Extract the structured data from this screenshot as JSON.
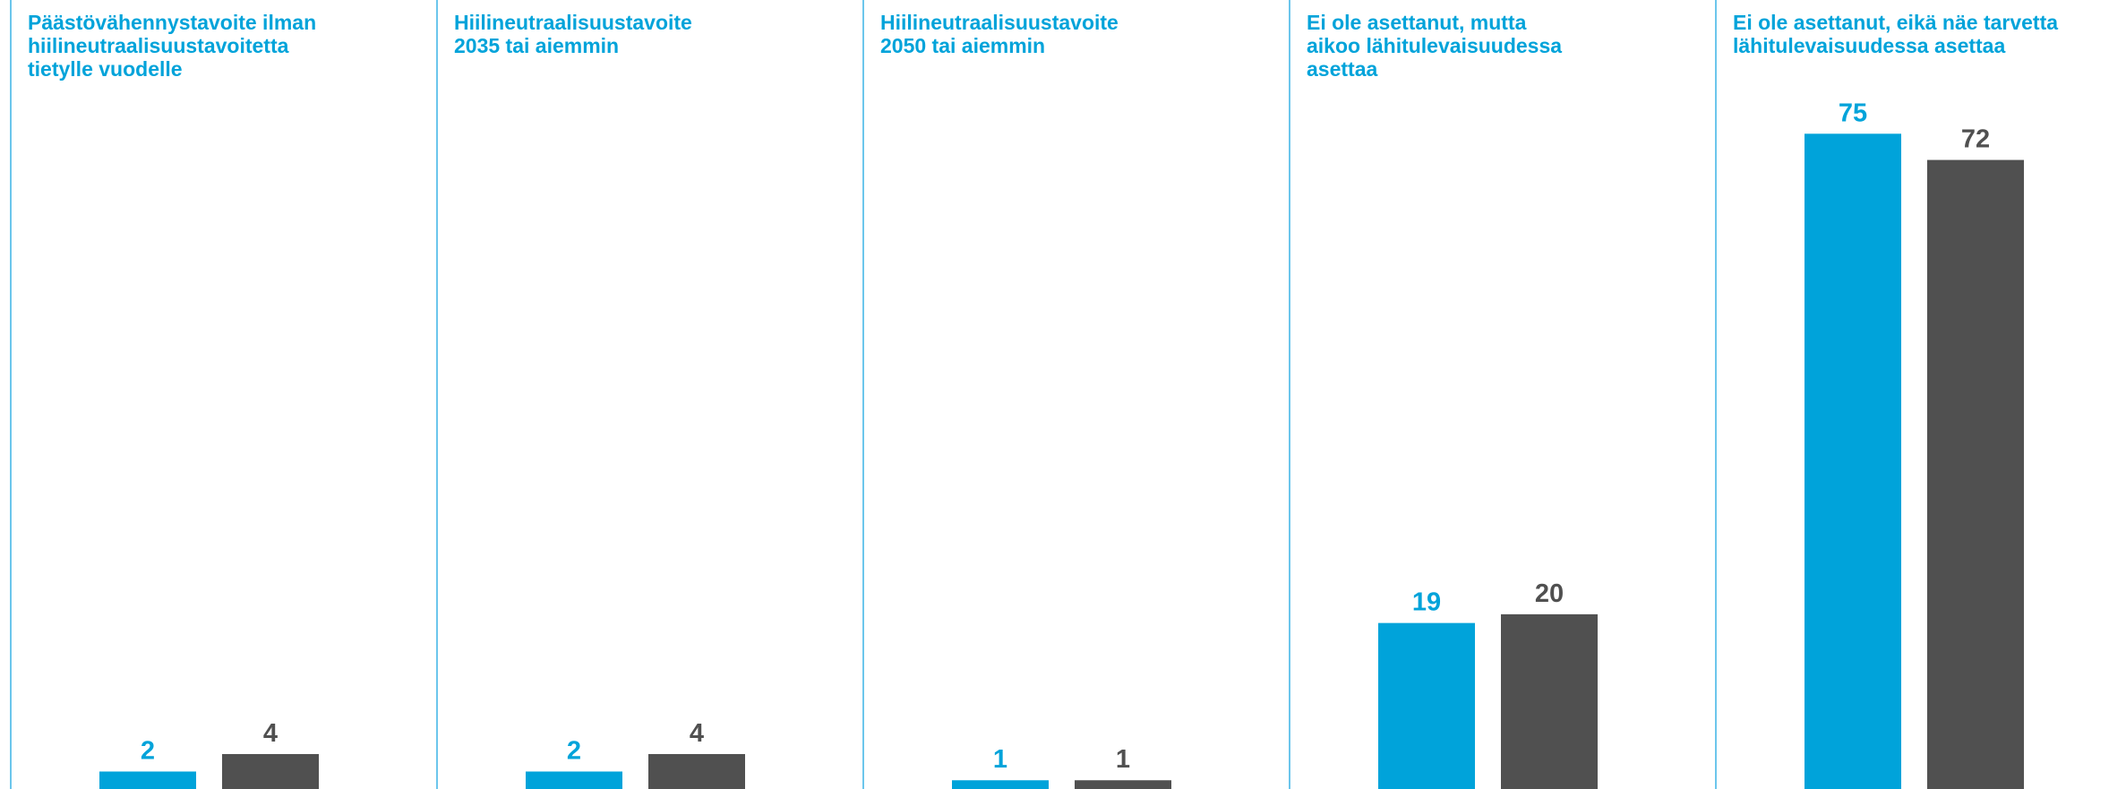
{
  "chart_data": {
    "type": "bar",
    "categories": [
      [
        "Päästövähennystavoite ilman",
        "hiilineutraalisuustavoitetta",
        "tietylle vuodelle"
      ],
      [
        "Hiilineutraalisuustavoite",
        "2035 tai aiemmin"
      ],
      [
        "Hiilineutraalisuustavoite",
        "2050 tai aiemmin"
      ],
      [
        "Ei ole asettanut, mutta",
        "aikoo lähitulevaisuudessa",
        "asettaa"
      ],
      [
        "Ei ole asettanut, eikä näe tarvetta",
        "lähitulevaisuudessa asettaa"
      ]
    ],
    "series": [
      {
        "color": "#00a3da",
        "values": [
          2,
          2,
          1,
          19,
          75
        ]
      },
      {
        "color": "#505050",
        "values": [
          4,
          4,
          1,
          20,
          72
        ]
      }
    ],
    "ylim": [
      0,
      90
    ]
  }
}
